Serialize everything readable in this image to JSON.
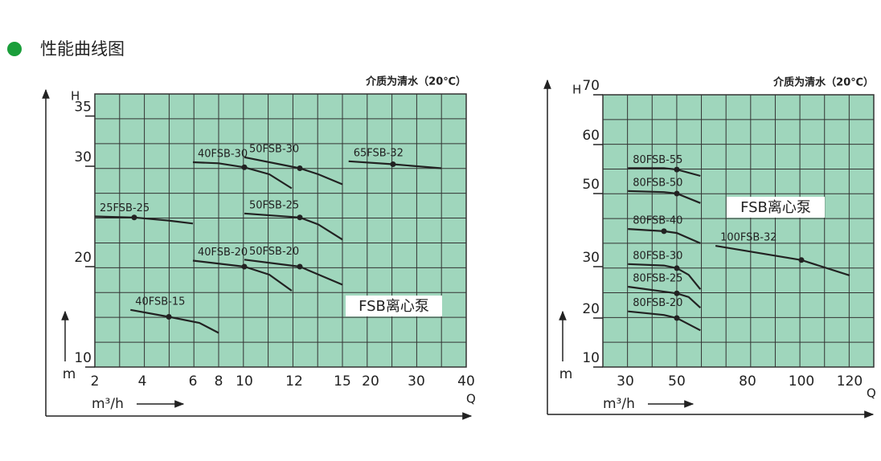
{
  "header": "性能曲线图",
  "chart_data": [
    {
      "type": "line",
      "note": "介质为清水（20℃）",
      "y_label": "H",
      "x_label": "Q",
      "y_unit": "m",
      "x_unit": "m³/h",
      "annotation": "FSB离心泵",
      "background": "#9fd6bc",
      "line_color": "#222",
      "xlim": [
        2,
        40
      ],
      "xticks": [
        2,
        4,
        6,
        8,
        10,
        12,
        15,
        20,
        30,
        40
      ],
      "ylim": [
        10,
        37.2
      ],
      "yticks": [
        10,
        20,
        30,
        35
      ],
      "series": [
        {
          "name": "25FSB-25",
          "x": [
            2,
            3.66,
            5,
            6
          ],
          "values": [
            25,
            24.9,
            24.6,
            24.3
          ],
          "rated": [
            3.66,
            24.9
          ]
        },
        {
          "name": "40FSB-30",
          "x": [
            6,
            8,
            10,
            11,
            11.9
          ],
          "values": [
            30.4,
            30.3,
            29.9,
            29.2,
            27.8
          ],
          "rated": [
            10,
            29.9
          ]
        },
        {
          "name": "50FSB-30",
          "x": [
            10,
            12.35,
            13.5,
            15
          ],
          "values": [
            30.9,
            29.8,
            29.2,
            28.2
          ],
          "rated": [
            12.35,
            29.8
          ]
        },
        {
          "name": "65FSB-32",
          "x": [
            16.1,
            24.9,
            35
          ],
          "values": [
            30.5,
            30.2,
            29.8
          ],
          "rated": [
            24.9,
            30.2
          ]
        },
        {
          "name": "50FSB-25",
          "x": [
            10,
            12.35,
            13.5,
            15
          ],
          "values": [
            25.3,
            24.9,
            24.2,
            22.7
          ],
          "rated": [
            12.35,
            24.9
          ]
        },
        {
          "name": "40FSB-20",
          "x": [
            6,
            10,
            11,
            11.9
          ],
          "values": [
            20.6,
            20,
            19.2,
            17.6
          ],
          "rated": [
            10,
            20
          ]
        },
        {
          "name": "50FSB-20",
          "x": [
            10,
            12.35,
            15
          ],
          "values": [
            20.7,
            20,
            18.2
          ],
          "rated": [
            12.35,
            20
          ]
        },
        {
          "name": "40FSB-15",
          "x": [
            3.5,
            5.05,
            6.5,
            8
          ],
          "values": [
            15.7,
            15,
            14.4,
            13.4
          ],
          "rated": [
            5.05,
            15
          ]
        }
      ]
    },
    {
      "type": "line",
      "note": "介质为清水（20℃）",
      "y_label": "H",
      "x_label": "Q",
      "y_unit": "m",
      "x_unit": "m³/h",
      "annotation": "FSB离心泵",
      "background": "#9fd6bc",
      "line_color": "#222",
      "xlim": [
        21,
        130
      ],
      "xticks": [
        30,
        50,
        80,
        100,
        120
      ],
      "ylim": [
        10,
        70
      ],
      "yticks": [
        10,
        20,
        30,
        50,
        60,
        70
      ],
      "series": [
        {
          "name": "80FSB-55",
          "x": [
            31,
            45,
            50,
            60
          ],
          "values": [
            55.2,
            55.2,
            54.9,
            53.6
          ],
          "rated": [
            50,
            54.9
          ]
        },
        {
          "name": "80FSB-50",
          "x": [
            31,
            45,
            50,
            60
          ],
          "values": [
            50.5,
            50.3,
            50,
            47.4
          ],
          "rated": [
            50,
            50
          ]
        },
        {
          "name": "80FSB-40",
          "x": [
            31,
            45,
            50,
            60
          ],
          "values": [
            40.3,
            39.7,
            39.2,
            36.4
          ],
          "rated": [
            45,
            39.7
          ]
        },
        {
          "name": "80FSB-30",
          "x": [
            31,
            45,
            50,
            55,
            60
          ],
          "values": [
            30.7,
            30.3,
            29.7,
            28.4,
            25.6
          ],
          "rated": [
            50,
            29.7
          ]
        },
        {
          "name": "80FSB-25",
          "x": [
            31,
            50,
            55,
            60
          ],
          "values": [
            26.1,
            24.8,
            24.1,
            22
          ],
          "rated": [
            50,
            24.8
          ]
        },
        {
          "name": "80FSB-20",
          "x": [
            31,
            45,
            50,
            60
          ],
          "values": [
            21.3,
            20.6,
            20,
            17.5
          ],
          "rated": [
            50,
            20
          ]
        },
        {
          "name": "100FSB-32",
          "x": [
            66.4,
            100,
            120
          ],
          "values": [
            35.7,
            31.8,
            28.3
          ],
          "rated": [
            100,
            31.8
          ]
        }
      ]
    }
  ]
}
